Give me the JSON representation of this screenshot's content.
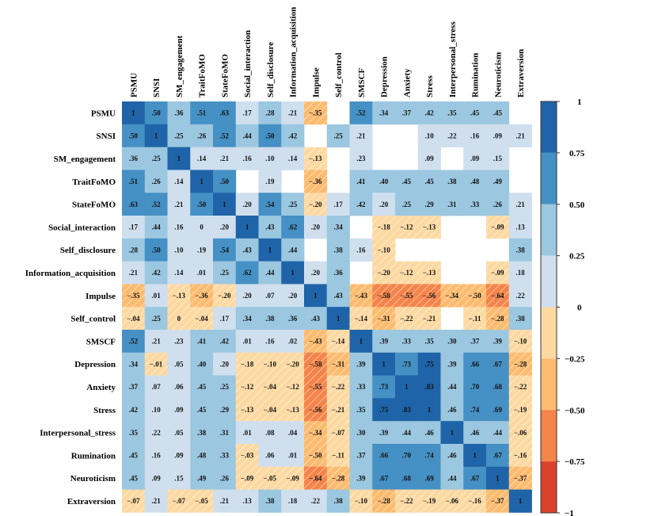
{
  "chart_data": {
    "type": "heatmap",
    "title": "",
    "variables": [
      "PSMU",
      "SNSI",
      "SM_engagement",
      "TraitFoMO",
      "StateFoMO",
      "Social_interaction",
      "Self_disclosure",
      "Information_acquisition",
      "Impulse",
      "Self_control",
      "SMSCF",
      "Depression",
      "Anxiety",
      "Stress",
      "Interpersonal_stress",
      "Rumination",
      "Neuroticism",
      "Extraversion"
    ],
    "matrix": [
      [
        1,
        0.5,
        0.36,
        0.51,
        0.63,
        0.17,
        0.28,
        0.21,
        -0.35,
        null,
        0.52,
        0.34,
        0.37,
        0.42,
        0.35,
        0.45,
        0.45,
        null
      ],
      [
        0.5,
        1,
        0.25,
        0.26,
        0.52,
        0.44,
        0.5,
        0.42,
        null,
        0.25,
        0.21,
        null,
        null,
        0.1,
        0.22,
        0.16,
        0.09,
        0.21
      ],
      [
        0.36,
        0.25,
        1,
        0.14,
        0.21,
        0.16,
        0.1,
        0.14,
        -0.13,
        null,
        0.23,
        null,
        null,
        0.09,
        null,
        0.09,
        0.15,
        null
      ],
      [
        0.51,
        0.26,
        0.14,
        1,
        0.5,
        null,
        0.19,
        null,
        -0.36,
        null,
        0.41,
        0.4,
        0.45,
        0.45,
        0.38,
        0.48,
        0.49,
        null
      ],
      [
        0.63,
        0.52,
        0.21,
        0.5,
        1,
        0.2,
        0.54,
        0.25,
        -0.2,
        0.17,
        0.42,
        0.2,
        0.25,
        0.29,
        0.31,
        0.33,
        0.26,
        0.21
      ],
      [
        0.17,
        0.44,
        0.16,
        0,
        0.2,
        1,
        0.43,
        0.62,
        0.2,
        0.34,
        null,
        -0.18,
        -0.12,
        -0.13,
        null,
        null,
        -0.09,
        0.13
      ],
      [
        0.28,
        0.5,
        0.1,
        0.19,
        0.54,
        0.43,
        1,
        0.44,
        null,
        0.38,
        0.16,
        -0.1,
        null,
        null,
        null,
        null,
        null,
        0.38
      ],
      [
        0.21,
        0.42,
        0.14,
        0.01,
        0.25,
        0.62,
        0.44,
        1,
        0.2,
        0.36,
        null,
        -0.2,
        -0.12,
        -0.13,
        null,
        null,
        -0.09,
        0.18
      ],
      [
        -0.35,
        0.01,
        -0.13,
        -0.36,
        -0.2,
        0.2,
        0.07,
        0.2,
        1,
        0.43,
        -0.43,
        -0.58,
        -0.55,
        -0.56,
        -0.34,
        -0.5,
        -0.64,
        0.22
      ],
      [
        -0.04,
        0.25,
        -0.001,
        -0.04,
        0.17,
        0.34,
        0.38,
        0.36,
        0.43,
        1,
        -0.14,
        -0.31,
        -0.22,
        -0.21,
        null,
        -0.11,
        -0.28,
        0.38
      ],
      [
        0.52,
        0.21,
        0.23,
        0.41,
        0.42,
        0.01,
        0.16,
        0.02,
        -0.43,
        -0.14,
        1,
        0.39,
        0.33,
        0.35,
        0.3,
        0.37,
        0.39,
        -0.1
      ],
      [
        0.34,
        -0.01,
        0.05,
        0.4,
        0.2,
        -0.18,
        -0.1,
        -0.2,
        -0.58,
        -0.31,
        0.39,
        1,
        0.73,
        0.75,
        0.39,
        0.66,
        0.67,
        -0.28
      ],
      [
        0.37,
        0.07,
        0.06,
        0.45,
        0.25,
        -0.12,
        -0.04,
        -0.12,
        -0.55,
        -0.22,
        0.33,
        0.73,
        1,
        0.83,
        0.44,
        0.7,
        0.68,
        -0.22
      ],
      [
        0.42,
        0.1,
        0.09,
        0.45,
        0.29,
        -0.13,
        -0.04,
        -0.13,
        -0.56,
        -0.21,
        0.35,
        0.75,
        0.83,
        1,
        0.46,
        0.74,
        0.69,
        -0.19
      ],
      [
        0.35,
        0.22,
        0.05,
        0.38,
        0.31,
        0.01,
        0.08,
        0.04,
        -0.34,
        -0.07,
        0.3,
        0.39,
        0.44,
        0.46,
        1,
        0.46,
        0.44,
        -0.06
      ],
      [
        0.45,
        0.16,
        0.09,
        0.48,
        0.33,
        -0.03,
        0.06,
        0.01,
        -0.5,
        -0.11,
        0.37,
        0.66,
        0.7,
        0.74,
        0.46,
        1,
        0.67,
        -0.16
      ],
      [
        0.45,
        0.09,
        0.15,
        0.49,
        0.26,
        -0.09,
        -0.05,
        -0.09,
        -0.64,
        -0.28,
        0.39,
        0.67,
        0.68,
        0.69,
        0.44,
        0.67,
        1,
        -0.37
      ],
      [
        -0.07,
        0.21,
        -0.07,
        -0.05,
        0.21,
        0.13,
        0.38,
        0.18,
        0.22,
        0.38,
        -0.1,
        -0.28,
        -0.22,
        -0.19,
        -0.06,
        -0.16,
        -0.37,
        1
      ]
    ],
    "colorbar": {
      "range": [
        -1,
        1
      ],
      "ticks": [
        1,
        0.75,
        0.5,
        0.25,
        0,
        -0.25,
        -0.5,
        -0.75,
        -1
      ],
      "tick_labels": [
        "1",
        "0.75",
        "0.50",
        "0.25",
        "0",
        "−0.25",
        "−0.50",
        "−0.75",
        "−1"
      ],
      "bins": [
        {
          "min": 0.75,
          "max": 1,
          "color": "#1f64a8"
        },
        {
          "min": 0.5,
          "max": 0.75,
          "color": "#4590c4"
        },
        {
          "min": 0.25,
          "max": 0.5,
          "color": "#9bc7e0"
        },
        {
          "min": 0,
          "max": 0.25,
          "color": "#cfdfee"
        },
        {
          "min": -0.25,
          "max": 0,
          "color": "#fdd9a2"
        },
        {
          "min": -0.5,
          "max": -0.25,
          "color": "#fdbb6f"
        },
        {
          "min": -0.75,
          "max": -0.5,
          "color": "#f5844a"
        },
        {
          "min": -1,
          "max": -0.75,
          "color": "#d9432c"
        }
      ],
      "placement": "right"
    },
    "negative_hatch": true,
    "blank_cells_meaning": "non-significant"
  }
}
